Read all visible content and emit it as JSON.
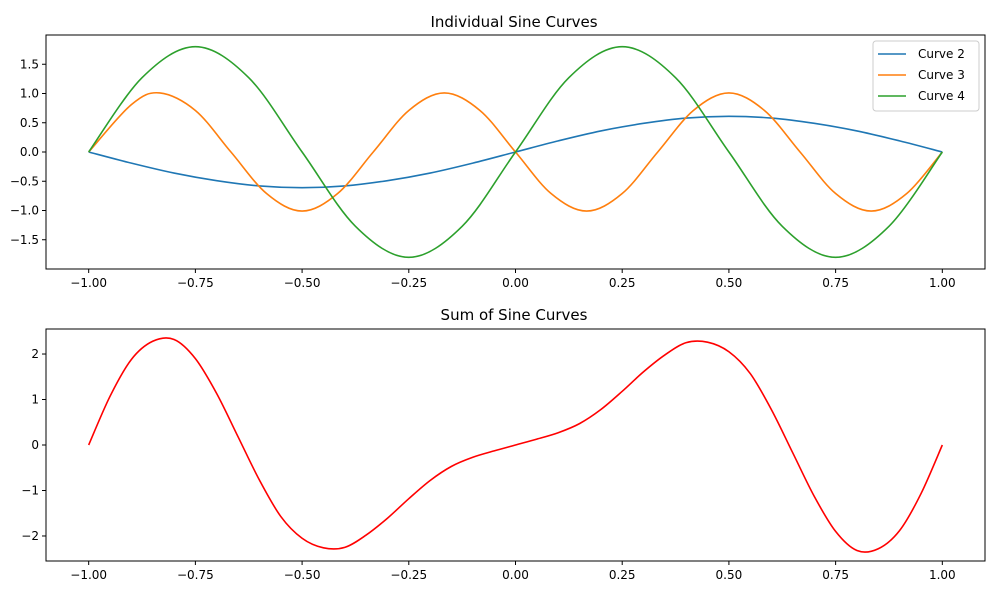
{
  "chart_data": [
    {
      "type": "line",
      "title": "Individual Sine Curves",
      "xlabel": "",
      "ylabel": "",
      "xlim": [
        -1.1,
        1.1
      ],
      "ylim": [
        -2.0,
        2.0
      ],
      "x_ticks": [
        -1.0,
        -0.75,
        -0.5,
        -0.25,
        0.0,
        0.25,
        0.5,
        0.75,
        1.0
      ],
      "x_tick_labels": [
        "−1.00",
        "−0.75",
        "−0.50",
        "−0.25",
        "0.00",
        "0.25",
        "0.50",
        "0.75",
        "1.00"
      ],
      "y_ticks": [
        1.5,
        1.0,
        0.5,
        0.0,
        -0.5,
        -1.0,
        -1.5
      ],
      "y_tick_labels": [
        "1.5",
        "1.0",
        "0.5",
        "0.0",
        "−0.5",
        "−1.0",
        "−1.5"
      ],
      "grid": false,
      "legend": "top-right",
      "series": [
        {
          "name": "Curve 2",
          "color": "#1f77b4",
          "x": [
            -1.0,
            -0.9,
            -0.8,
            -0.7,
            -0.6,
            -0.5,
            -0.4,
            -0.3,
            -0.2,
            -0.1,
            0.0,
            0.1,
            0.2,
            0.3,
            0.4,
            0.5,
            0.6,
            0.7,
            0.8,
            0.9,
            1.0
          ],
          "values": [
            0.0,
            -0.19,
            -0.36,
            -0.49,
            -0.58,
            -0.61,
            -0.58,
            -0.49,
            -0.36,
            -0.19,
            0.0,
            0.19,
            0.36,
            0.49,
            0.58,
            0.61,
            0.58,
            0.49,
            0.36,
            0.19,
            0.0
          ]
        },
        {
          "name": "Curve 3",
          "color": "#ff7f0e",
          "x": [
            -1.0,
            -0.9,
            -0.8333,
            -0.75,
            -0.6667,
            -0.5833,
            -0.5,
            -0.4167,
            -0.3333,
            -0.25,
            -0.1667,
            -0.0833,
            0.0,
            0.0833,
            0.1667,
            0.25,
            0.3333,
            0.4167,
            0.5,
            0.5833,
            0.6667,
            0.75,
            0.8333,
            0.9167,
            1.0
          ],
          "values": [
            0.0,
            0.81,
            1.01,
            0.71,
            0.0,
            -0.71,
            -1.01,
            -0.71,
            0.0,
            0.71,
            1.01,
            0.71,
            0.0,
            -0.71,
            -1.01,
            -0.71,
            0.0,
            0.71,
            1.01,
            0.71,
            0.0,
            -0.71,
            -1.01,
            -0.71,
            0.0
          ]
        },
        {
          "name": "Curve 4",
          "color": "#2ca02c",
          "x": [
            -1.0,
            -0.875,
            -0.75,
            -0.625,
            -0.5,
            -0.375,
            -0.25,
            -0.125,
            0.0,
            0.125,
            0.25,
            0.375,
            0.5,
            0.625,
            0.75,
            0.875,
            1.0
          ],
          "values": [
            0.0,
            1.27,
            1.8,
            1.27,
            0.0,
            -1.27,
            -1.8,
            -1.27,
            0.0,
            1.27,
            1.8,
            1.27,
            0.0,
            -1.27,
            -1.8,
            -1.27,
            0.0
          ]
        }
      ]
    },
    {
      "type": "line",
      "title": "Sum of Sine Curves",
      "xlabel": "",
      "ylabel": "",
      "xlim": [
        -1.1,
        1.1
      ],
      "ylim": [
        -2.55,
        2.55
      ],
      "x_ticks": [
        -1.0,
        -0.75,
        -0.5,
        -0.25,
        0.0,
        0.25,
        0.5,
        0.75,
        1.0
      ],
      "x_tick_labels": [
        "−1.00",
        "−0.75",
        "−0.50",
        "−0.25",
        "0.00",
        "0.25",
        "0.50",
        "0.75",
        "1.00"
      ],
      "y_ticks": [
        2,
        1,
        0,
        -1,
        -2
      ],
      "y_tick_labels": [
        "2",
        "1",
        "0",
        "−1",
        "−2"
      ],
      "grid": false,
      "legend": "none",
      "series": [
        {
          "color": "#ff0000",
          "x": [
            -1.0,
            -0.95,
            -0.9,
            -0.85,
            -0.8,
            -0.75,
            -0.7,
            -0.65,
            -0.6,
            -0.55,
            -0.5,
            -0.45,
            -0.4,
            -0.35,
            -0.3,
            -0.25,
            -0.2,
            -0.15,
            -0.1,
            -0.05,
            0.0,
            0.05,
            0.1,
            0.15,
            0.2,
            0.25,
            0.3,
            0.35,
            0.4,
            0.45,
            0.5,
            0.55,
            0.6,
            0.65,
            0.7,
            0.75,
            0.8,
            0.85,
            0.9,
            0.95,
            1.0
          ],
          "values": [
            0.0,
            1.07,
            1.88,
            2.28,
            2.32,
            1.9,
            1.13,
            0.18,
            -0.77,
            -1.57,
            -2.05,
            -2.26,
            -2.25,
            -1.98,
            -1.61,
            -1.18,
            -0.78,
            -0.47,
            -0.27,
            -0.13,
            0.0,
            0.13,
            0.27,
            0.47,
            0.78,
            1.18,
            1.61,
            1.98,
            2.25,
            2.26,
            2.05,
            1.57,
            0.77,
            -0.18,
            -1.13,
            -1.9,
            -2.32,
            -2.28,
            -1.88,
            -1.07,
            0.0
          ]
        }
      ]
    }
  ]
}
